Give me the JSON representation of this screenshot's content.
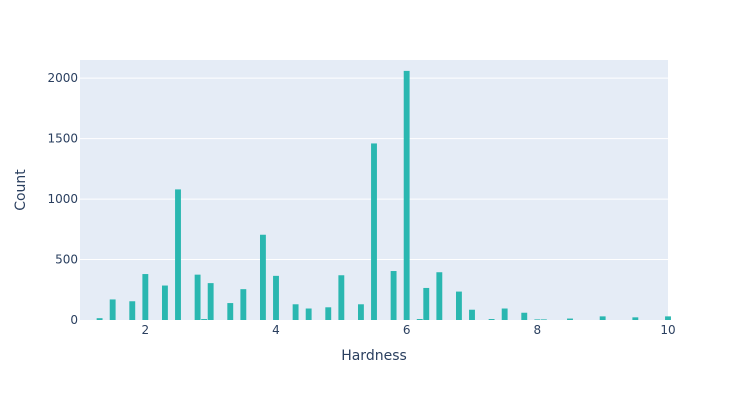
{
  "colors": {
    "plot_background": "#e5ecf6",
    "bar": "#2ab7b0",
    "text": "#2a3f5f",
    "grid": "#ffffff"
  },
  "chart_data": {
    "type": "bar",
    "xlabel": "Hardness",
    "ylabel": "Count",
    "xlim": [
      1.0,
      10.0
    ],
    "ylim": [
      0,
      2150
    ],
    "x_ticks": [
      2,
      4,
      6,
      8,
      10
    ],
    "y_ticks": [
      0,
      500,
      1000,
      1500,
      2000
    ],
    "grid": true,
    "legend": false,
    "bin_width": 0.1,
    "bars": [
      {
        "x": 1.3,
        "y": 15
      },
      {
        "x": 1.5,
        "y": 170
      },
      {
        "x": 1.8,
        "y": 155
      },
      {
        "x": 2.0,
        "y": 380
      },
      {
        "x": 2.3,
        "y": 285
      },
      {
        "x": 2.5,
        "y": 1080
      },
      {
        "x": 2.8,
        "y": 375
      },
      {
        "x": 2.9,
        "y": 8
      },
      {
        "x": 3.0,
        "y": 305
      },
      {
        "x": 3.3,
        "y": 140
      },
      {
        "x": 3.5,
        "y": 255
      },
      {
        "x": 3.8,
        "y": 705
      },
      {
        "x": 4.0,
        "y": 365
      },
      {
        "x": 4.3,
        "y": 130
      },
      {
        "x": 4.5,
        "y": 95
      },
      {
        "x": 4.8,
        "y": 105
      },
      {
        "x": 5.0,
        "y": 370
      },
      {
        "x": 5.3,
        "y": 130
      },
      {
        "x": 5.5,
        "y": 1460
      },
      {
        "x": 5.8,
        "y": 405
      },
      {
        "x": 6.0,
        "y": 2060
      },
      {
        "x": 6.2,
        "y": 8
      },
      {
        "x": 6.3,
        "y": 265
      },
      {
        "x": 6.5,
        "y": 395
      },
      {
        "x": 6.8,
        "y": 235
      },
      {
        "x": 7.0,
        "y": 85
      },
      {
        "x": 7.3,
        "y": 8
      },
      {
        "x": 7.5,
        "y": 95
      },
      {
        "x": 7.8,
        "y": 60
      },
      {
        "x": 8.0,
        "y": 5
      },
      {
        "x": 8.1,
        "y": 5
      },
      {
        "x": 8.5,
        "y": 12
      },
      {
        "x": 9.0,
        "y": 30
      },
      {
        "x": 9.5,
        "y": 22
      },
      {
        "x": 10.0,
        "y": 30
      }
    ]
  }
}
